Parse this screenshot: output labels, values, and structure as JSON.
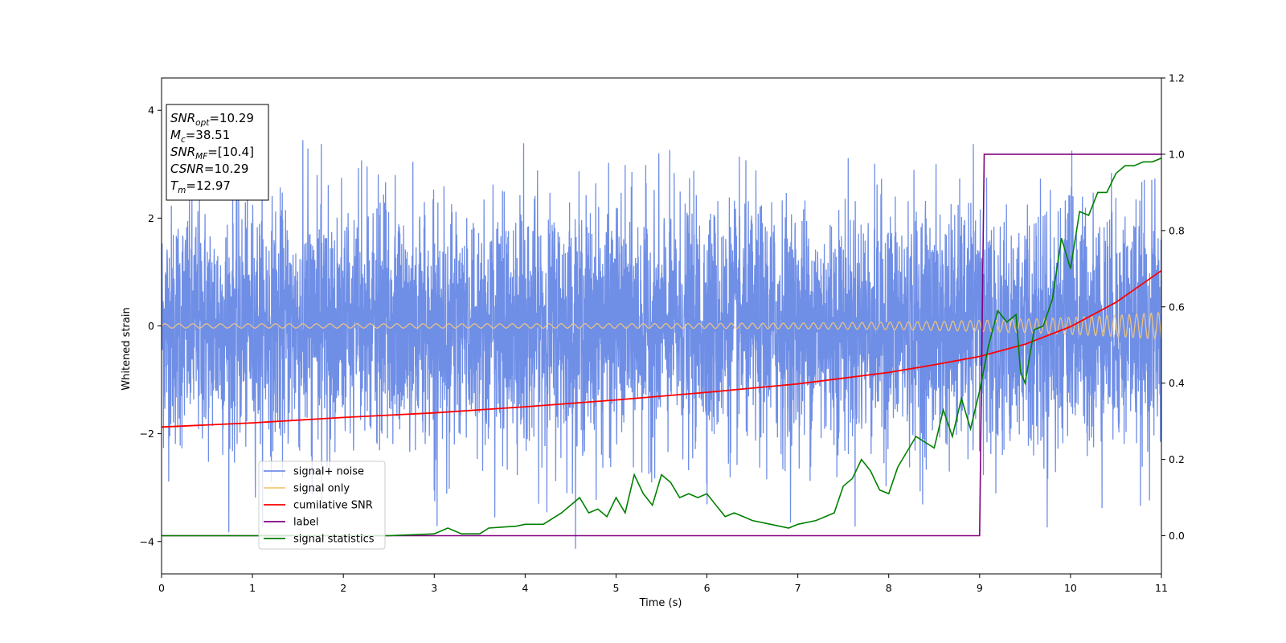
{
  "chart_data": {
    "type": "line",
    "xlabel": "Time (s)",
    "ylabel": "Whitened strain",
    "xlim": [
      0,
      11
    ],
    "ylim": [
      -4.6,
      4.6
    ],
    "y2lim": [
      -0.1,
      1.2
    ],
    "x_ticks": [
      "0",
      "1",
      "2",
      "3",
      "4",
      "5",
      "6",
      "7",
      "8",
      "9",
      "10",
      "11"
    ],
    "y_ticks": [
      "−4",
      "−2",
      "0",
      "2",
      "4"
    ],
    "y2_ticks": [
      "0.0",
      "0.2",
      "0.4",
      "0.6",
      "0.8",
      "1.0",
      "1.2"
    ],
    "grid": false,
    "legend_position": "lower-left",
    "info_box": [
      {
        "sym": "SNR",
        "sub": "opt",
        "val": "=10.29"
      },
      {
        "sym": "M",
        "sub": "c",
        "val": "=38.51"
      },
      {
        "sym": "SNR",
        "sub": "MF",
        "val": "=[10.4]"
      },
      {
        "sym": "CSNR",
        "sub": "",
        "val": "=10.29"
      },
      {
        "sym": "T",
        "sub": "m",
        "val": "=12.97"
      }
    ],
    "series": [
      {
        "name": "signal+ noise",
        "color": "#6f8ee6",
        "axis": "left",
        "kind": "noise",
        "std": 1.1,
        "range": [
          -4.2,
          3.5
        ]
      },
      {
        "name": "signal only",
        "color": "#f5c87a",
        "axis": "left",
        "kind": "chirp",
        "amplitude_start": 0.04,
        "amplitude_end": 0.25
      },
      {
        "name": "cumilative SNR",
        "color": "#ff0000",
        "axis": "right",
        "x": [
          0,
          1,
          2,
          3,
          4,
          5,
          6,
          7,
          8,
          8.5,
          9,
          9.5,
          10,
          10.5,
          11
        ],
        "y": [
          0.285,
          0.296,
          0.31,
          0.322,
          0.338,
          0.356,
          0.376,
          0.398,
          0.428,
          0.448,
          0.47,
          0.502,
          0.548,
          0.612,
          0.695
        ]
      },
      {
        "name": "label",
        "color": "#800080",
        "axis": "right",
        "x": [
          0,
          9.0,
          9.05,
          11
        ],
        "y": [
          0,
          0,
          1,
          1
        ]
      },
      {
        "name": "signal statistics",
        "color": "#008000",
        "axis": "right",
        "x": [
          0,
          1,
          2,
          2.5,
          3.0,
          3.15,
          3.3,
          3.5,
          3.6,
          3.9,
          4.0,
          4.2,
          4.3,
          4.4,
          4.5,
          4.6,
          4.7,
          4.8,
          4.9,
          5.0,
          5.1,
          5.2,
          5.3,
          5.4,
          5.5,
          5.6,
          5.7,
          5.8,
          5.9,
          6.0,
          6.2,
          6.3,
          6.4,
          6.5,
          6.7,
          6.9,
          7.0,
          7.2,
          7.4,
          7.5,
          7.6,
          7.7,
          7.8,
          7.9,
          8.0,
          8.1,
          8.2,
          8.3,
          8.5,
          8.6,
          8.7,
          8.8,
          8.9,
          9.0,
          9.1,
          9.2,
          9.3,
          9.4,
          9.45,
          9.5,
          9.6,
          9.7,
          9.8,
          9.9,
          10.0,
          10.1,
          10.2,
          10.3,
          10.4,
          10.5,
          10.6,
          10.7,
          10.8,
          10.9,
          11
        ],
        "y": [
          0.0,
          0.0,
          0.0,
          0.0,
          0.005,
          0.02,
          0.005,
          0.005,
          0.02,
          0.025,
          0.03,
          0.03,
          0.045,
          0.06,
          0.08,
          0.1,
          0.06,
          0.07,
          0.05,
          0.1,
          0.06,
          0.16,
          0.11,
          0.08,
          0.16,
          0.14,
          0.1,
          0.11,
          0.1,
          0.11,
          0.05,
          0.06,
          0.05,
          0.04,
          0.03,
          0.02,
          0.03,
          0.04,
          0.06,
          0.13,
          0.15,
          0.2,
          0.17,
          0.12,
          0.11,
          0.18,
          0.22,
          0.26,
          0.23,
          0.33,
          0.26,
          0.36,
          0.28,
          0.38,
          0.5,
          0.59,
          0.56,
          0.58,
          0.43,
          0.4,
          0.54,
          0.55,
          0.62,
          0.78,
          0.7,
          0.85,
          0.84,
          0.9,
          0.9,
          0.95,
          0.97,
          0.97,
          0.98,
          0.98,
          0.99
        ]
      }
    ]
  }
}
